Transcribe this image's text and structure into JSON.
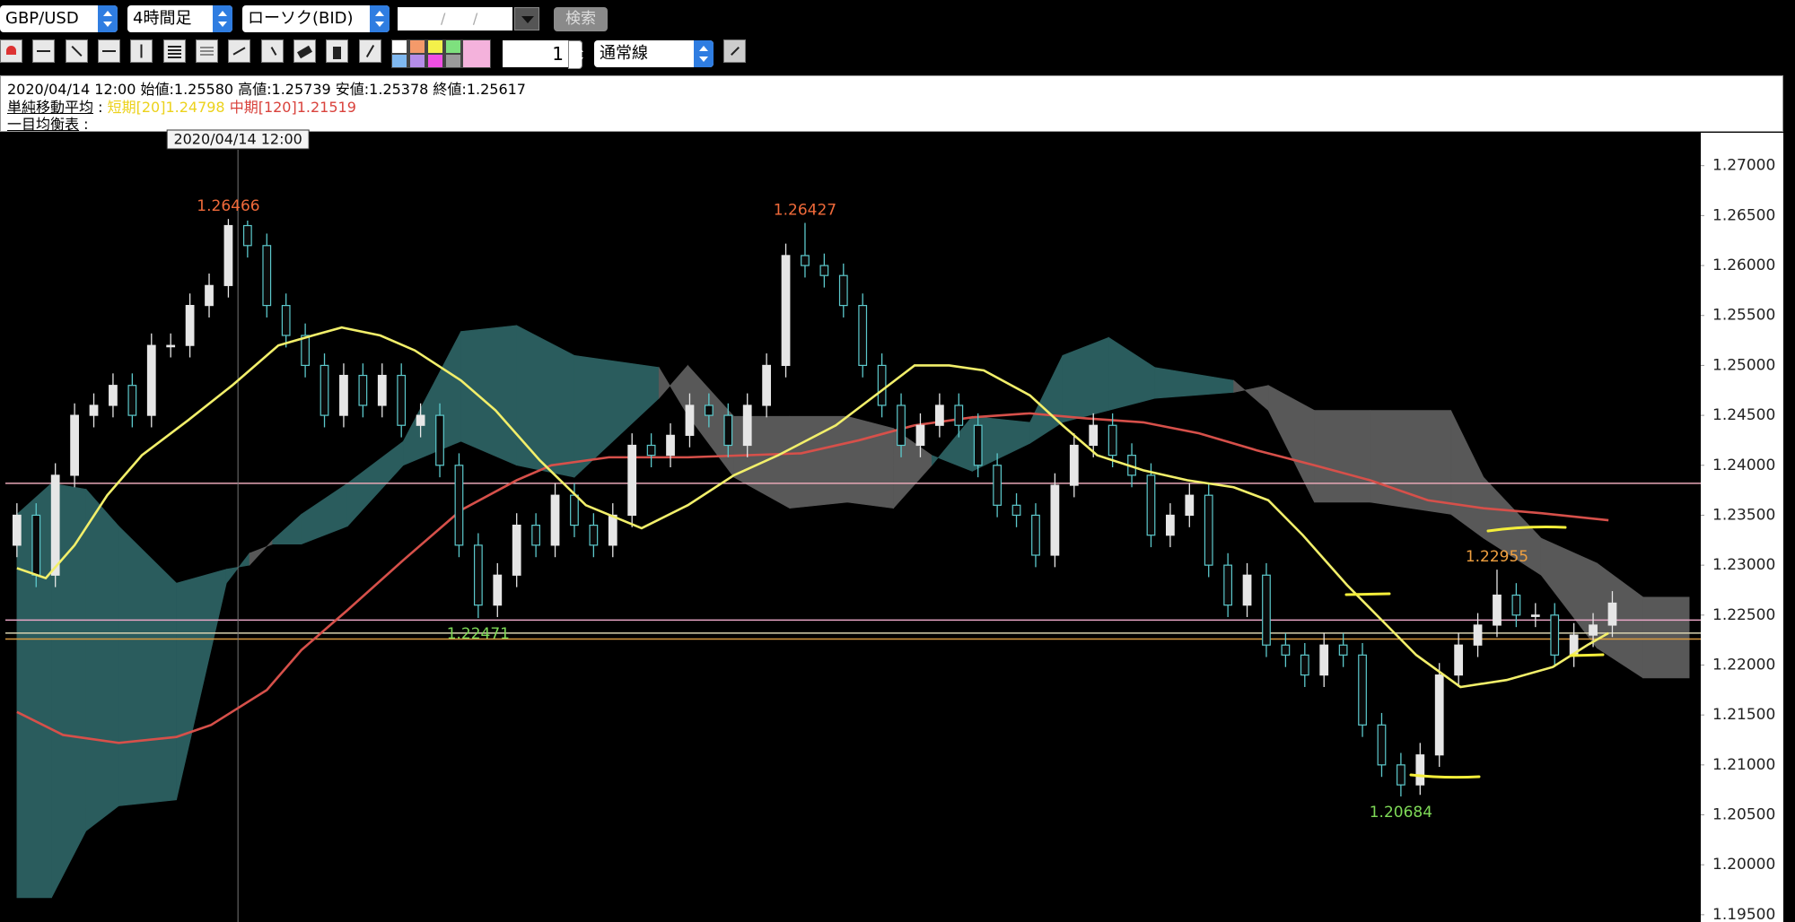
{
  "toolbar": {
    "symbol": "GBP/USD",
    "timeframe": "4時間足",
    "chart_type": "ローソク(BID)",
    "date": "/      /",
    "search": "検索",
    "line_width": "1",
    "line_style": "通常線"
  },
  "info": {
    "ohlc": "2020/04/14 12:00 始値:1.25580 高値:1.25739 安値:1.25378 終値:1.25617",
    "sma_label": "単純移動平均",
    "sma_sep": ":",
    "sma_short": "短期[20]1.24798",
    "sma_mid": "中期[120]1.21519",
    "ichimoku_label": "一目均衡表",
    "ichimoku_sep": ":"
  },
  "chart_data": {
    "type": "candlestick",
    "ylim": [
      1.19463,
      1.27159
    ],
    "xlim": [
      -0.6,
      87.6
    ],
    "yticks": [
      {
        "value": 1.27,
        "label": "1.27000"
      },
      {
        "value": 1.265,
        "label": "1.26500"
      },
      {
        "value": 1.26,
        "label": "1.26000"
      },
      {
        "value": 1.255,
        "label": "1.25500"
      },
      {
        "value": 1.25,
        "label": "1.25000"
      },
      {
        "value": 1.245,
        "label": "1.24500"
      },
      {
        "value": 1.24,
        "label": "1.24000"
      },
      {
        "value": 1.235,
        "label": "1.23500"
      },
      {
        "value": 1.23,
        "label": "1.23000"
      },
      {
        "value": 1.225,
        "label": "1.22500"
      },
      {
        "value": 1.22,
        "label": "1.22000"
      },
      {
        "value": 1.215,
        "label": "1.21500"
      },
      {
        "value": 1.21,
        "label": "1.21000"
      },
      {
        "value": 1.205,
        "label": "1.20500"
      },
      {
        "value": 1.2,
        "label": "1.20000"
      },
      {
        "value": 1.195,
        "label": "1.19500"
      }
    ],
    "open": [
      1.232,
      1.235,
      1.229,
      1.239,
      1.245,
      1.246,
      1.248,
      1.245,
      1.252,
      1.252,
      1.256,
      1.258,
      1.264,
      1.262,
      1.256,
      1.253,
      1.25,
      1.245,
      1.249,
      1.246,
      1.249,
      1.244,
      1.245,
      1.24,
      1.232,
      1.226,
      1.229,
      1.234,
      1.232,
      1.237,
      1.234,
      1.232,
      1.235,
      1.242,
      1.241,
      1.243,
      1.246,
      1.245,
      1.242,
      1.246,
      1.25,
      1.261,
      1.26,
      1.259,
      1.256,
      1.25,
      1.246,
      1.242,
      1.244,
      1.246,
      1.244,
      1.24,
      1.236,
      1.235,
      1.231,
      1.238,
      1.242,
      1.244,
      1.241,
      1.239,
      1.233,
      1.235,
      1.237,
      1.23,
      1.226,
      1.229,
      1.222,
      1.221,
      1.219,
      1.222,
      1.221,
      1.214,
      1.21,
      1.208,
      1.211,
      1.219,
      1.222,
      1.224,
      1.227,
      1.225,
      1.225,
      1.221,
      1.223,
      1.224
    ],
    "high": [
      1.2362,
      1.2362,
      1.2402,
      1.2462,
      1.2472,
      1.2492,
      1.2492,
      1.2532,
      1.2532,
      1.2572,
      1.2592,
      1.26466,
      1.2645,
      1.2632,
      1.2572,
      1.2542,
      1.2512,
      1.2502,
      1.2502,
      1.2502,
      1.2502,
      1.2462,
      1.2462,
      1.2412,
      1.2332,
      1.2302,
      1.2352,
      1.2352,
      1.2382,
      1.2382,
      1.2352,
      1.2362,
      1.2432,
      1.2432,
      1.2442,
      1.2472,
      1.2472,
      1.2462,
      1.2472,
      1.2512,
      1.2622,
      1.26427,
      1.2612,
      1.2602,
      1.2572,
      1.2512,
      1.2472,
      1.2452,
      1.2472,
      1.2472,
      1.2452,
      1.2412,
      1.2372,
      1.2362,
      1.2392,
      1.2432,
      1.2452,
      1.2452,
      1.2422,
      1.2402,
      1.2362,
      1.2382,
      1.2382,
      1.2312,
      1.2302,
      1.2302,
      1.2232,
      1.2222,
      1.2232,
      1.2232,
      1.2222,
      1.2152,
      1.2112,
      1.2122,
      1.2202,
      1.2232,
      1.2252,
      1.22955,
      1.2282,
      1.2262,
      1.2262,
      1.2242,
      1.2252,
      1.2274
    ],
    "low": [
      1.2308,
      1.2278,
      1.2278,
      1.2378,
      1.2438,
      1.2448,
      1.2438,
      1.2438,
      1.2508,
      1.2508,
      1.2548,
      1.2568,
      1.2608,
      1.2548,
      1.2518,
      1.2488,
      1.2438,
      1.2438,
      1.2448,
      1.2448,
      1.2428,
      1.2428,
      1.2388,
      1.2308,
      1.22471,
      1.2248,
      1.2278,
      1.2308,
      1.2308,
      1.2328,
      1.2308,
      1.2308,
      1.2338,
      1.2398,
      1.2398,
      1.2418,
      1.2438,
      1.2408,
      1.2408,
      1.2448,
      1.2488,
      1.2588,
      1.2578,
      1.2548,
      1.2488,
      1.2448,
      1.2408,
      1.2408,
      1.2428,
      1.2428,
      1.2388,
      1.2348,
      1.2338,
      1.2298,
      1.2298,
      1.2368,
      1.2408,
      1.2398,
      1.2378,
      1.2318,
      1.2318,
      1.2338,
      1.2288,
      1.2248,
      1.2248,
      1.2208,
      1.2198,
      1.2178,
      1.2178,
      1.2198,
      1.2128,
      1.2088,
      1.20684,
      1.207,
      1.2098,
      1.2178,
      1.2208,
      1.2228,
      1.2238,
      1.2238,
      1.2198,
      1.2198,
      1.2218,
      1.2228
    ],
    "close": [
      1.235,
      1.229,
      1.239,
      1.245,
      1.246,
      1.248,
      1.245,
      1.252,
      1.252,
      1.256,
      1.258,
      1.264,
      1.262,
      1.256,
      1.253,
      1.25,
      1.245,
      1.249,
      1.246,
      1.249,
      1.244,
      1.245,
      1.24,
      1.232,
      1.226,
      1.229,
      1.234,
      1.232,
      1.237,
      1.234,
      1.232,
      1.235,
      1.242,
      1.241,
      1.243,
      1.246,
      1.245,
      1.242,
      1.246,
      1.25,
      1.261,
      1.26,
      1.259,
      1.256,
      1.25,
      1.246,
      1.242,
      1.244,
      1.246,
      1.244,
      1.24,
      1.236,
      1.235,
      1.231,
      1.238,
      1.242,
      1.244,
      1.241,
      1.239,
      1.233,
      1.235,
      1.237,
      1.23,
      1.226,
      1.229,
      1.222,
      1.221,
      1.219,
      1.222,
      1.221,
      1.214,
      1.21,
      1.208,
      1.211,
      1.219,
      1.222,
      1.224,
      1.227,
      1.225,
      1.225,
      1.221,
      1.223,
      1.224,
      1.2262
    ],
    "up_color": "#e6e6e6",
    "down_color": "#5cc9cc",
    "lines": [
      {
        "color": "#d6504a",
        "x": [
          0,
          2.4,
          5.3,
          8.3,
          10.1,
          13,
          14.8,
          17.2,
          20.1,
          23.1,
          26,
          27.8,
          30.8,
          34.9,
          40.8,
          43.8,
          46.7,
          49.7,
          52.7,
          55.6,
          58.6,
          61.5,
          64.5,
          67.5,
          70.4,
          73.4,
          76.3,
          79.3,
          82.8
        ],
        "values": [
          1.2153,
          1.213,
          1.2122,
          1.2128,
          1.214,
          1.2175,
          1.2215,
          1.2255,
          1.2305,
          1.2355,
          1.2385,
          1.24,
          1.2408,
          1.2408,
          1.2412,
          1.2425,
          1.244,
          1.2448,
          1.2452,
          1.2447,
          1.2443,
          1.2432,
          1.2415,
          1.24,
          1.2385,
          1.2365,
          1.2357,
          1.2352,
          1.2345
        ]
      },
      {
        "color": "#f2ef6a",
        "x": [
          0,
          1.5,
          3,
          4.7,
          6.5,
          8.9,
          11.2,
          13.6,
          15.4,
          16.9,
          18.9,
          20.7,
          23.1,
          24.9,
          27.2,
          29.6,
          32.5,
          34.9,
          37.3,
          39.6,
          42.6,
          45,
          46.7,
          48.5,
          50.3,
          52.7,
          54.4,
          56.2,
          58.6,
          60.9,
          63.3,
          65.1,
          66.9,
          69.2,
          71,
          72.8,
          75.1,
          77.5,
          79.9,
          81.7,
          82.8
        ],
        "values": [
          1.2297,
          1.2287,
          1.232,
          1.237,
          1.241,
          1.2445,
          1.248,
          1.252,
          1.253,
          1.2538,
          1.253,
          1.2515,
          1.2485,
          1.2455,
          1.2405,
          1.236,
          1.2337,
          1.236,
          1.239,
          1.241,
          1.244,
          1.2475,
          1.25,
          1.25,
          1.2495,
          1.247,
          1.244,
          1.241,
          1.2395,
          1.2385,
          1.2378,
          1.2365,
          1.233,
          1.228,
          1.2245,
          1.221,
          1.2178,
          1.2185,
          1.2198,
          1.222,
          1.2232
        ]
      }
    ],
    "cloud": {
      "up_color": "#2a5c5d",
      "down_color": "#585858",
      "x": [
        0,
        1.8,
        3.6,
        5.3,
        8.3,
        10.9,
        12.1,
        13.3,
        14.8,
        17.2,
        20.1,
        23.1,
        26,
        29,
        33.4,
        34.9,
        37.3,
        40.2,
        43.2,
        45.6,
        47.6,
        49.7,
        52.7,
        54.4,
        56.8,
        59.2,
        63.3,
        65.1,
        67.5,
        70.4,
        74.6,
        76.3,
        79.3,
        82.2,
        84.6,
        87
      ],
      "span_a": [
        1.2351,
        1.2382,
        1.2376,
        1.2339,
        1.2282,
        1.2296,
        1.23,
        1.2325,
        1.2351,
        1.2382,
        1.2424,
        1.2534,
        1.254,
        1.251,
        1.2498,
        1.245,
        1.2388,
        1.2357,
        1.2363,
        1.2357,
        1.24,
        1.2449,
        1.2443,
        1.251,
        1.2528,
        1.2498,
        1.2485,
        1.2455,
        1.2363,
        1.2363,
        1.2351,
        1.2327,
        1.229,
        1.2217,
        1.2187,
        1.2187
      ],
      "span_b": [
        1.1967,
        1.1967,
        1.2034,
        1.2059,
        1.2065,
        1.2282,
        1.2312,
        1.2321,
        1.2321,
        1.2339,
        1.24,
        1.2424,
        1.24,
        1.2388,
        1.2467,
        1.25,
        1.2449,
        1.2449,
        1.2449,
        1.2437,
        1.241,
        1.2394,
        1.2422,
        1.2443,
        1.2455,
        1.2467,
        1.2473,
        1.248,
        1.2455,
        1.2455,
        1.2455,
        1.2388,
        1.2327,
        1.2302,
        1.2268,
        1.2268
      ]
    },
    "hlines": [
      {
        "value": 1.2382,
        "color": "#e7a7b6"
      },
      {
        "value": 1.2245,
        "color": "#e9a6c6"
      },
      {
        "value": 1.2232,
        "color": "#d8d2b0"
      },
      {
        "value": 1.2226,
        "color": "#d99a3e"
      }
    ],
    "annotations": [
      {
        "x": 11,
        "value": 1.26466,
        "color": "#f06a3a",
        "position": "above"
      },
      {
        "x": 41,
        "value": 1.26427,
        "color": "#f06a3a",
        "position": "above"
      },
      {
        "x": 24,
        "value": 1.22471,
        "color": "#7ed957",
        "position": "below"
      },
      {
        "x": 77,
        "value": 1.22955,
        "color": "#f0a040",
        "position": "above"
      },
      {
        "x": 72,
        "value": 1.20684,
        "color": "#7ed957",
        "position": "below"
      }
    ],
    "crosshair": {
      "x": 11.5,
      "label": "2020/04/14 12:00"
    }
  }
}
